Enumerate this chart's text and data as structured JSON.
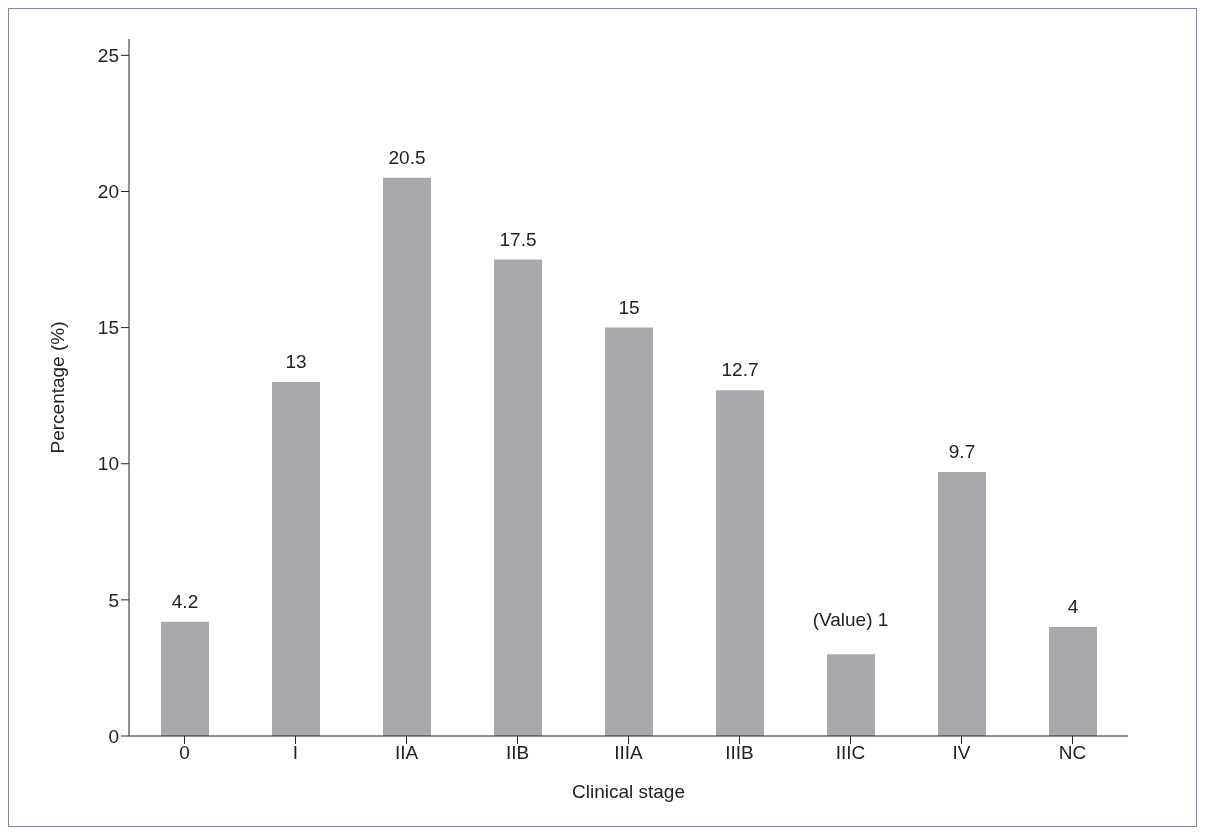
{
  "chart_data": {
    "type": "bar",
    "xlabel": "Clinical stage",
    "ylabel": "Percentage (%)",
    "categories": [
      "0",
      "I",
      "IIA",
      "IIB",
      "IIIA",
      "IIIB",
      "IIIC",
      "IV",
      "NC"
    ],
    "values": [
      4.2,
      13,
      20.5,
      17.5,
      15,
      12.7,
      3,
      9.7,
      4
    ],
    "value_labels": [
      "4.2",
      "13",
      "20.5",
      "17.5",
      "15",
      "12.7",
      null,
      "9.7",
      "4"
    ],
    "annotations": [
      {
        "text": "(Value) 1",
        "x": "IIIC",
        "y": 3
      }
    ],
    "color": "#a7a9ac",
    "ylim": [
      0,
      25.6
    ],
    "yticks": [
      0,
      5,
      10,
      15,
      20,
      25
    ],
    "grid": false,
    "legend": false
  }
}
